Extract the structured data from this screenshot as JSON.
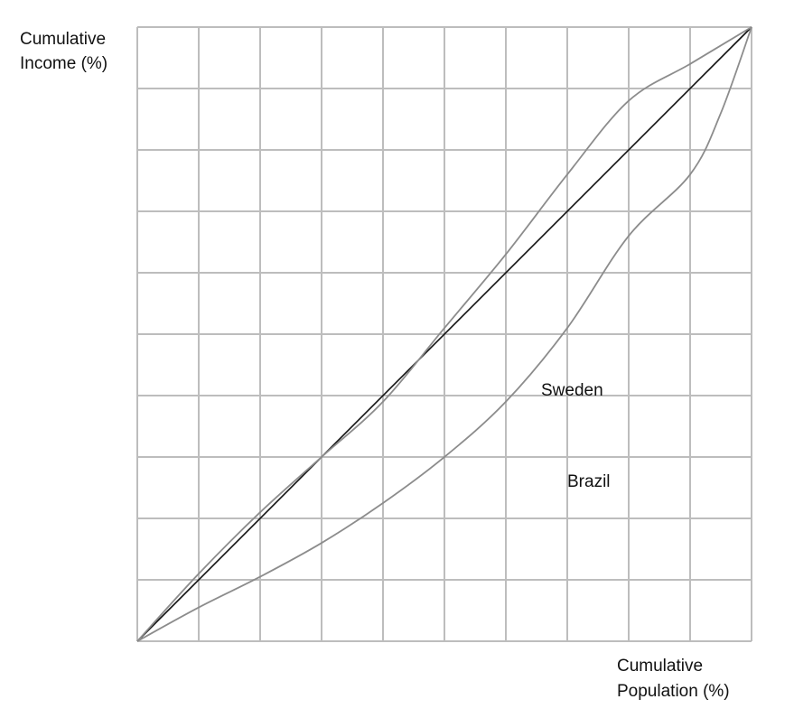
{
  "chart_data": {
    "type": "line",
    "title": "",
    "ylabel_lines": [
      "Cumulative",
      "Income (%)"
    ],
    "xlabel_lines": [
      "Cumulative",
      "Population (%)"
    ],
    "xlim": [
      0,
      100
    ],
    "ylim": [
      0,
      100
    ],
    "grid": true,
    "grid_step": 10,
    "series": [
      {
        "name": "",
        "color": "#111111",
        "x": [
          0,
          100
        ],
        "y": [
          0,
          100
        ]
      },
      {
        "name": "Sweden",
        "color": "#8c8c8c",
        "x": [
          0,
          10,
          20,
          30,
          40,
          50,
          60,
          70,
          80,
          90,
          100
        ],
        "y": [
          0,
          11,
          21,
          30,
          39,
          51,
          63,
          76,
          88,
          94,
          100
        ]
      },
      {
        "name": "Brazil",
        "color": "#8c8c8c",
        "x": [
          0,
          10,
          20,
          30,
          40,
          50,
          60,
          70,
          80,
          90,
          95,
          100
        ],
        "y": [
          0,
          5.5,
          10.5,
          16,
          22.5,
          30,
          39,
          51,
          66,
          76,
          86,
          100
        ]
      }
    ]
  }
}
